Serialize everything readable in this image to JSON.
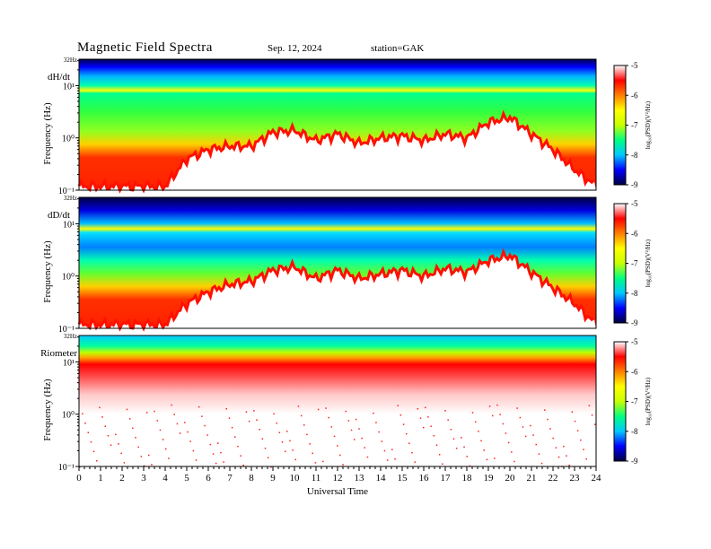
{
  "header": {
    "title": "Magnetic  Field  Spectra",
    "date": "Sep. 12, 2024",
    "station": "station=GAK"
  },
  "colors": {
    "colormap": [
      "#000040",
      "#0000ff",
      "#00c8ff",
      "#00ff80",
      "#c8ff00",
      "#ffff00",
      "#ff8000",
      "#ff0000",
      "#ffffff"
    ]
  },
  "chart_data": [
    {
      "type": "heatmap",
      "panel_label": "dH/dt",
      "ylabel": "Frequency  (Hz)",
      "ytop_label": "32Hz",
      "ytick_labels": [
        "10¹",
        "10⁰",
        "10⁻¹"
      ],
      "ylim": [
        0.1,
        32
      ],
      "yscale": "log",
      "xlim": [
        0,
        24
      ],
      "colorbar": {
        "label": "log₁₀(PSD)(V²/Hz)",
        "range": [
          -9,
          -5
        ],
        "tick_labels": [
          "-5",
          "-6",
          "-7",
          "-8",
          "-9"
        ]
      },
      "ridge_frequency_hz": {
        "x": [
          0,
          1,
          2,
          3,
          4,
          5,
          6,
          7,
          8,
          9,
          10,
          11,
          12,
          13,
          14,
          15,
          16,
          17,
          18,
          19,
          20,
          21,
          22,
          23,
          24
        ],
        "y": [
          0.12,
          0.12,
          0.12,
          0.12,
          0.12,
          0.4,
          0.6,
          0.7,
          0.7,
          1.3,
          1.4,
          0.9,
          1.2,
          0.8,
          1.0,
          1.1,
          0.9,
          1.2,
          1.0,
          2.0,
          2.5,
          1.2,
          0.6,
          0.25,
          0.12
        ]
      },
      "notes": "strong narrowband line near 8 Hz; low power (blue) above ~10 Hz"
    },
    {
      "type": "heatmap",
      "panel_label": "dD/dt",
      "ylabel": "Frequency  (Hz)",
      "ytop_label": "32Hz",
      "ytick_labels": [
        "10¹",
        "10⁰",
        "10⁻¹"
      ],
      "ylim": [
        0.1,
        32
      ],
      "yscale": "log",
      "xlim": [
        0,
        24
      ],
      "colorbar": {
        "label": "log₁₀(PSD)(V²/Hz)",
        "range": [
          -9,
          -5
        ],
        "tick_labels": [
          "-5",
          "-6",
          "-7",
          "-8",
          "-9"
        ]
      },
      "ridge_frequency_hz": {
        "x": [
          0,
          1,
          2,
          3,
          4,
          5,
          6,
          7,
          8,
          9,
          10,
          11,
          12,
          13,
          14,
          15,
          16,
          17,
          18,
          19,
          20,
          21,
          22,
          23,
          24
        ],
        "y": [
          0.12,
          0.12,
          0.12,
          0.12,
          0.12,
          0.3,
          0.5,
          0.7,
          0.8,
          1.3,
          1.5,
          0.9,
          1.3,
          0.9,
          1.1,
          1.3,
          1.0,
          1.4,
          1.2,
          2.0,
          2.5,
          1.2,
          0.6,
          0.3,
          0.12
        ]
      },
      "notes": "narrowband line near 8 Hz; blue band 2-6 Hz"
    },
    {
      "type": "heatmap",
      "panel_label": "Riometer",
      "ylabel": "Frequency  (Hz)",
      "ytop_label": "32Hz",
      "ytick_labels": [
        "10¹",
        "10⁰",
        "10⁻¹"
      ],
      "ylim": [
        0.1,
        32
      ],
      "yscale": "log",
      "xlim": [
        0,
        24
      ],
      "colorbar": {
        "label": "log₁₀(PSD)(V²/Hz)",
        "range": [
          -9,
          -5
        ],
        "tick_labels": [
          "-5",
          "-6",
          "-7",
          "-8",
          "-9"
        ]
      },
      "notes": "red band near 10 Hz across all hours; sparse red speckle below; white below ~3 Hz"
    }
  ],
  "xaxis": {
    "label": "Universal  Time",
    "tick_labels": [
      "0",
      "1",
      "2",
      "3",
      "4",
      "5",
      "6",
      "7",
      "8",
      "9",
      "10",
      "11",
      "12",
      "13",
      "14",
      "15",
      "16",
      "17",
      "18",
      "19",
      "20",
      "21",
      "22",
      "23",
      "24"
    ]
  }
}
